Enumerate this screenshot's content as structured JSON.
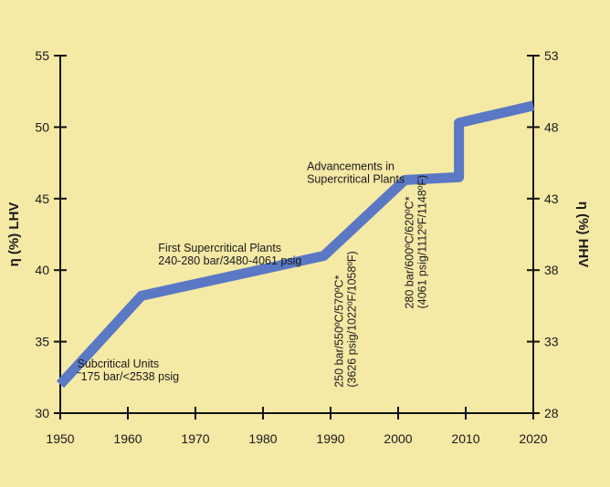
{
  "chart_data": {
    "type": "line",
    "title": "",
    "xlabel": "",
    "ylabel_left": "η (%) LHV",
    "ylabel_right": "η (%) HHV",
    "xlim": [
      1950,
      2020
    ],
    "ylim_left": [
      30,
      55
    ],
    "ylim_right": [
      28,
      53
    ],
    "x_ticks": [
      1950,
      1960,
      1970,
      1980,
      1990,
      2000,
      2010,
      2020
    ],
    "y_ticks_left": [
      30,
      35,
      40,
      45,
      50,
      55
    ],
    "y_ticks_right": [
      28,
      33,
      38,
      43,
      48,
      53
    ],
    "grid": false,
    "background_color": "#f5e9a6",
    "series": [
      {
        "color": "#5a78c4",
        "points": [
          {
            "x": 1950,
            "y": 32.0
          },
          {
            "x": 1962,
            "y": 38.2
          },
          {
            "x": 1989,
            "y": 41.0
          },
          {
            "x": 2001,
            "y": 46.3
          },
          {
            "x": 2009,
            "y": 46.5
          },
          {
            "x": 2009,
            "y": 50.3
          },
          {
            "x": 2020,
            "y": 51.5
          }
        ]
      }
    ],
    "annotations": [
      {
        "lines": [
          "Subcritical Units",
          "˜175 bar/<2538 psig"
        ],
        "x": 1952.5,
        "y": 33.2,
        "rotate": false
      },
      {
        "lines": [
          "First Supercritical Plants",
          "240-280 bar/3480-4061 psig"
        ],
        "x": 1964.5,
        "y": 41.3,
        "rotate": false
      },
      {
        "lines": [
          "Advancements in",
          "Supercritical Plants"
        ],
        "x": 1986.5,
        "y": 47.0,
        "rotate": false
      },
      {
        "lines": [
          "250 bar/550ºC/570ºC*",
          "(3626 psig/1022ºF/1058ºF)"
        ],
        "x": 1991.8,
        "y": 31.8,
        "rotate": true
      },
      {
        "lines": [
          "280 bar/600ºC/620ºC*",
          "(4061 psig/1112ºF/1148ºF)"
        ],
        "x": 2002.2,
        "y": 37.3,
        "rotate": true
      }
    ]
  }
}
